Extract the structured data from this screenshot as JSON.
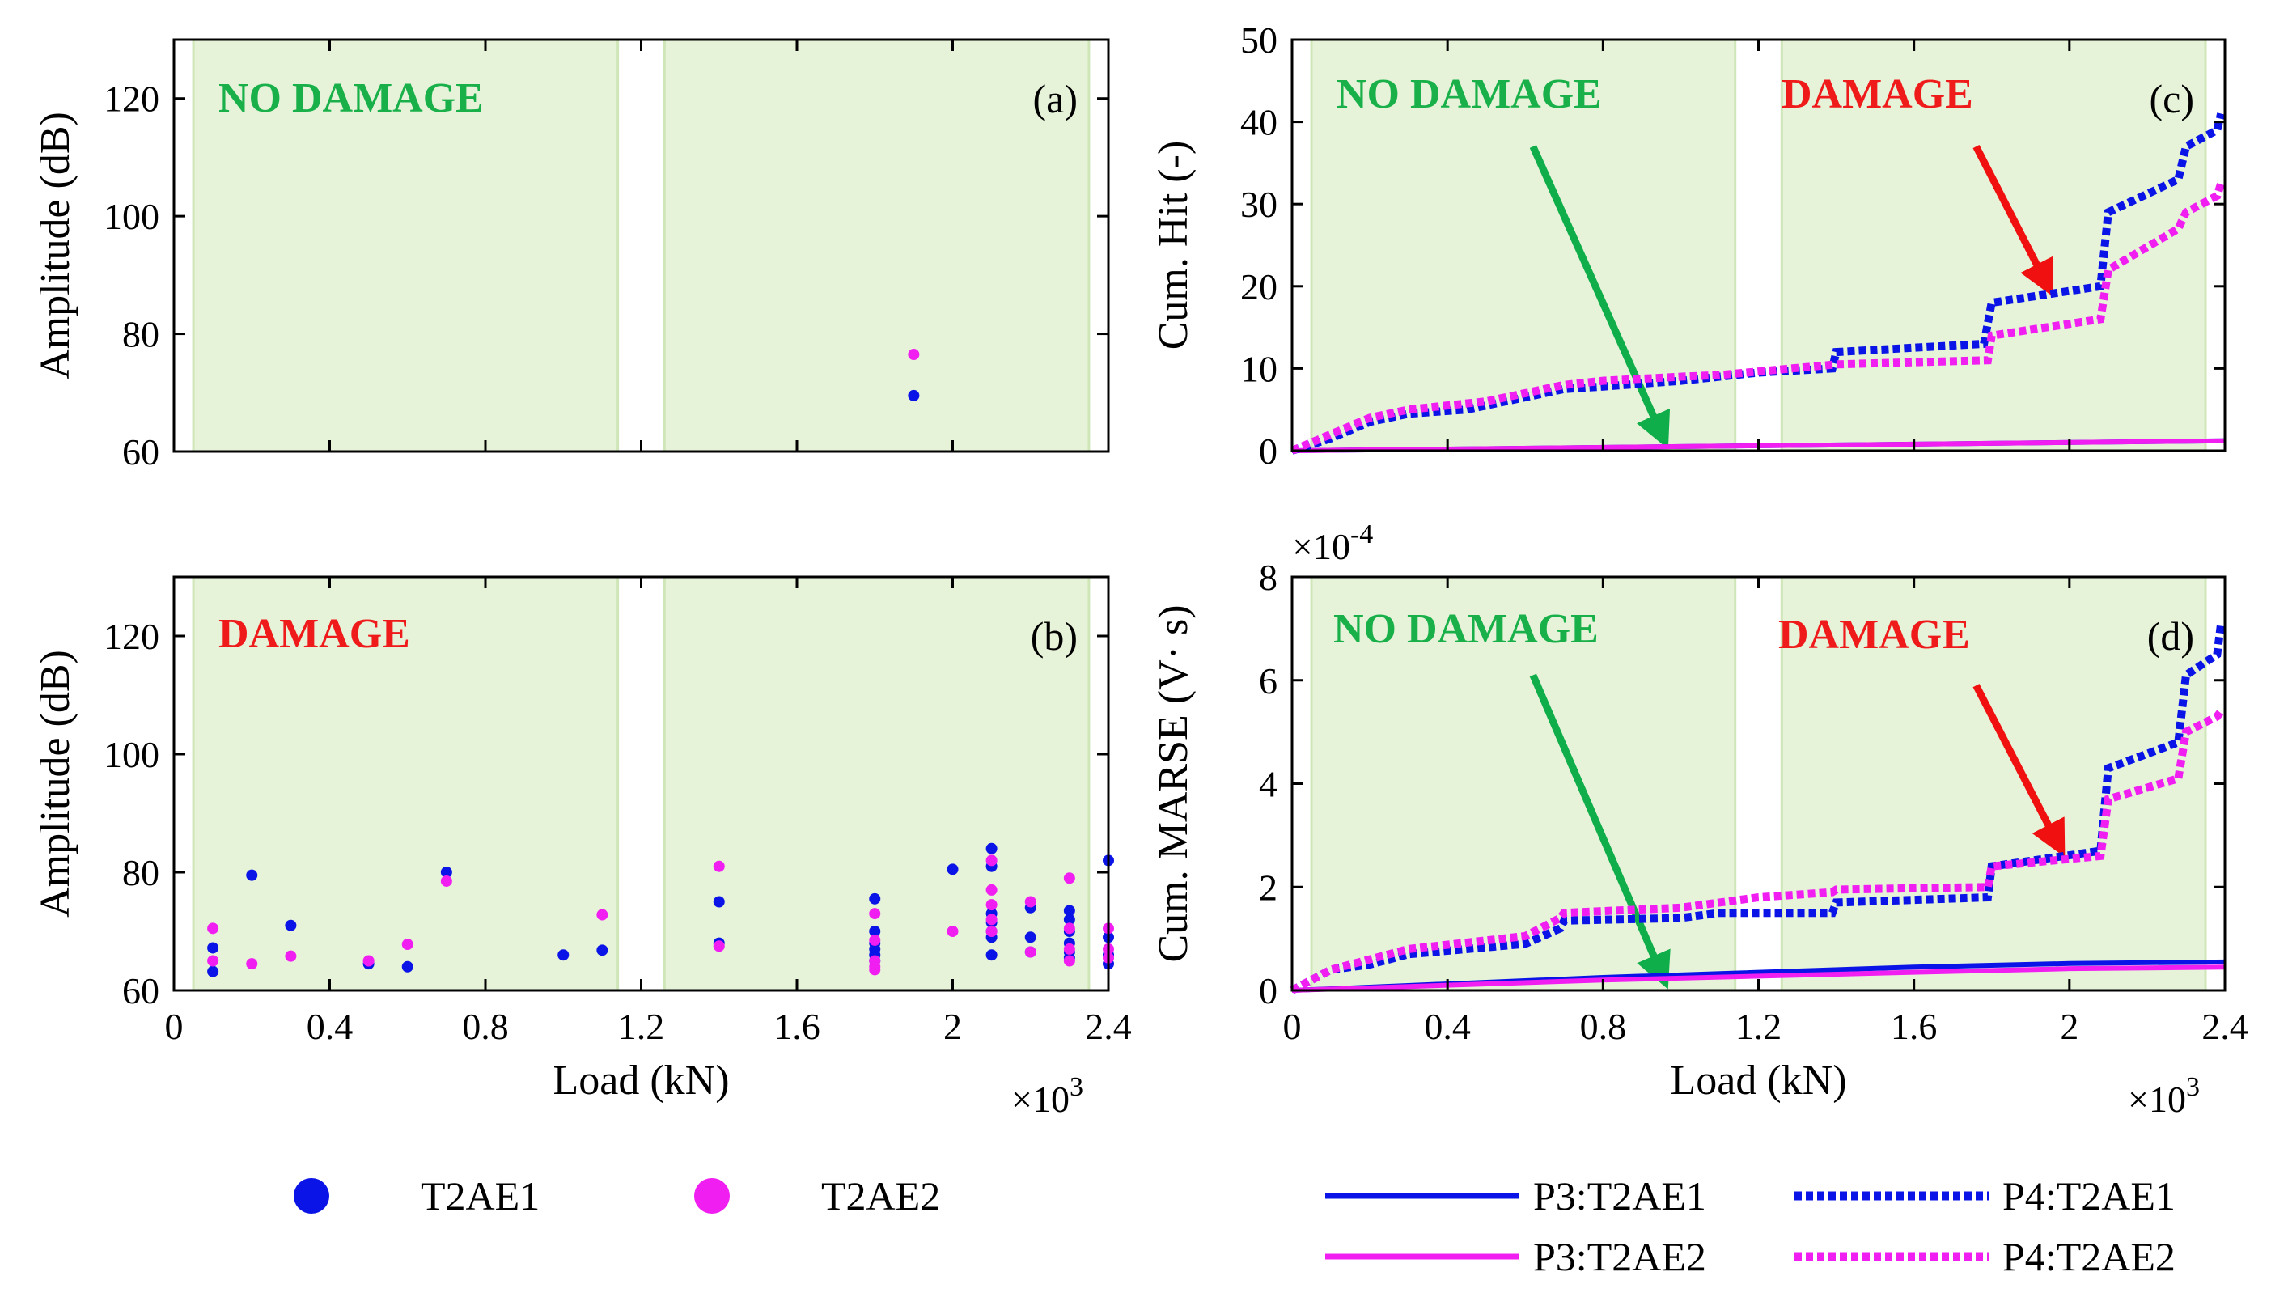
{
  "colors": {
    "blue": "#0a14e6",
    "magenta": "#f01ef0",
    "green_text": "#19b04a",
    "red_text": "#ef1b1b",
    "shade": "#e6f3d9",
    "shade_edge": "#cfe6b8",
    "green_arrow": "#0fae4a",
    "red_arrow": "#f01010"
  },
  "chart_data": [
    {
      "id": "a",
      "type": "scatter",
      "panel_label": "(a)",
      "zone_labels": [
        {
          "text": "NO DAMAGE",
          "color": "green"
        }
      ],
      "ylabel": "Amplitude (dB)",
      "xlabel": "",
      "xlim": [
        0,
        2400
      ],
      "ylim": [
        60,
        130
      ],
      "xticks": [
        0,
        400,
        800,
        1200,
        1600,
        2000,
        2400
      ],
      "yticks": [
        60,
        80,
        100,
        120
      ],
      "ytick_labels": [
        "60",
        "80",
        "100",
        "120"
      ],
      "shaded_regions": [
        [
          50,
          1140
        ],
        [
          1260,
          2350
        ]
      ],
      "series": [
        {
          "name": "T2AE1",
          "color": "blue",
          "points": [
            [
              1900,
              69.5
            ]
          ]
        },
        {
          "name": "T2AE2",
          "color": "magenta",
          "points": [
            [
              1900,
              76.5
            ]
          ]
        }
      ]
    },
    {
      "id": "b",
      "type": "scatter",
      "panel_label": "(b)",
      "zone_labels": [
        {
          "text": "DAMAGE",
          "color": "red"
        }
      ],
      "ylabel": "Amplitude (dB)",
      "xlabel": "Load (kN)",
      "x_multiplier": "×10",
      "x_multiplier_exp": "3",
      "xlim": [
        0,
        2400
      ],
      "ylim": [
        60,
        130
      ],
      "xticks": [
        0,
        400,
        800,
        1200,
        1600,
        2000,
        2400
      ],
      "xtick_labels": [
        "0",
        "0.4",
        "0.8",
        "1.2",
        "1.6",
        "2",
        "2.4"
      ],
      "yticks": [
        60,
        80,
        100,
        120
      ],
      "ytick_labels": [
        "60",
        "80",
        "100",
        "120"
      ],
      "shaded_regions": [
        [
          50,
          1140
        ],
        [
          1260,
          2350
        ]
      ],
      "series": [
        {
          "name": "T2AE1",
          "color": "blue",
          "points": [
            [
              100,
              67.2
            ],
            [
              100,
              63.2
            ],
            [
              200,
              79.5
            ],
            [
              300,
              71
            ],
            [
              500,
              64.5
            ],
            [
              600,
              64
            ],
            [
              700,
              80
            ],
            [
              1000,
              66
            ],
            [
              1100,
              66.8
            ],
            [
              1400,
              75
            ],
            [
              1400,
              68
            ],
            [
              1800,
              75.5
            ],
            [
              1800,
              70
            ],
            [
              1800,
              68
            ],
            [
              1800,
              67
            ],
            [
              1800,
              66
            ],
            [
              1800,
              65
            ],
            [
              2000,
              80.5
            ],
            [
              2100,
              84
            ],
            [
              2100,
              81
            ],
            [
              2100,
              73
            ],
            [
              2100,
              71.5
            ],
            [
              2100,
              70
            ],
            [
              2100,
              69
            ],
            [
              2100,
              66
            ],
            [
              2200,
              74
            ],
            [
              2200,
              69
            ],
            [
              2200,
              66.5
            ],
            [
              2300,
              73.5
            ],
            [
              2300,
              72
            ],
            [
              2300,
              70
            ],
            [
              2300,
              68
            ],
            [
              2300,
              66.5
            ],
            [
              2300,
              65.5
            ],
            [
              2400,
              82
            ],
            [
              2400,
              69
            ],
            [
              2400,
              66
            ],
            [
              2400,
              64.5
            ]
          ]
        },
        {
          "name": "T2AE2",
          "color": "magenta",
          "points": [
            [
              100,
              70.5
            ],
            [
              100,
              65
            ],
            [
              200,
              64.5
            ],
            [
              300,
              65.8
            ],
            [
              500,
              65
            ],
            [
              600,
              67.8
            ],
            [
              700,
              78.5
            ],
            [
              1100,
              72.8
            ],
            [
              1400,
              81
            ],
            [
              1400,
              67.5
            ],
            [
              1800,
              73
            ],
            [
              1800,
              68.5
            ],
            [
              1800,
              65
            ],
            [
              1800,
              64
            ],
            [
              1800,
              63.5
            ],
            [
              2000,
              70
            ],
            [
              2100,
              82
            ],
            [
              2100,
              77
            ],
            [
              2100,
              74.5
            ],
            [
              2100,
              72
            ],
            [
              2100,
              70
            ],
            [
              2200,
              75
            ],
            [
              2200,
              66.5
            ],
            [
              2300,
              79
            ],
            [
              2300,
              70.5
            ],
            [
              2300,
              67
            ],
            [
              2300,
              65
            ],
            [
              2400,
              70.5
            ],
            [
              2400,
              67
            ],
            [
              2400,
              65.5
            ]
          ]
        }
      ],
      "legend": {
        "entries": [
          "T2AE1",
          "T2AE2"
        ],
        "placement": "below"
      }
    },
    {
      "id": "c",
      "type": "line",
      "panel_label": "(c)",
      "zone_labels": [
        {
          "text": "NO DAMAGE",
          "color": "green"
        },
        {
          "text": "DAMAGE",
          "color": "red"
        }
      ],
      "ylabel": "Cum. Hit (-)",
      "xlabel": "",
      "xlim": [
        0,
        2400
      ],
      "ylim": [
        0,
        50
      ],
      "xticks": [
        0,
        400,
        800,
        1200,
        1600,
        2000,
        2400
      ],
      "yticks": [
        0,
        10,
        20,
        30,
        40,
        50
      ],
      "ytick_labels": [
        "0",
        "10",
        "20",
        "30",
        "40",
        "50"
      ],
      "shaded_regions": [
        [
          50,
          1140
        ],
        [
          1260,
          2350
        ]
      ],
      "arrows": [
        {
          "color": "green",
          "from": [
            620,
            37
          ],
          "to": [
            960,
            1
          ]
        },
        {
          "color": "red",
          "from": [
            1760,
            37
          ],
          "to": [
            1950,
            19.5
          ]
        }
      ],
      "series": [
        {
          "name": "P3:T2AE1",
          "color": "blue",
          "style": "solid",
          "points": [
            [
              0,
              0
            ],
            [
              2400,
              1.2
            ]
          ]
        },
        {
          "name": "P3:T2AE2",
          "color": "magenta",
          "style": "solid",
          "points": [
            [
              0,
              0
            ],
            [
              2400,
              1.2
            ]
          ]
        },
        {
          "name": "P4:T2AE1",
          "color": "blue",
          "style": "dotted",
          "points": [
            [
              0,
              0
            ],
            [
              100,
              1.5
            ],
            [
              200,
              3.5
            ],
            [
              300,
              4.5
            ],
            [
              450,
              5
            ],
            [
              600,
              6.5
            ],
            [
              700,
              7.5
            ],
            [
              800,
              7.8
            ],
            [
              1000,
              8.5
            ],
            [
              1100,
              9
            ],
            [
              1200,
              9.5
            ],
            [
              1390,
              10
            ],
            [
              1400,
              12
            ],
            [
              1780,
              13
            ],
            [
              1800,
              18
            ],
            [
              2080,
              20
            ],
            [
              2100,
              29
            ],
            [
              2280,
              33
            ],
            [
              2300,
              37
            ],
            [
              2380,
              39
            ],
            [
              2390,
              41
            ]
          ]
        },
        {
          "name": "P4:T2AE2",
          "color": "magenta",
          "style": "dotted",
          "points": [
            [
              0,
              0
            ],
            [
              100,
              2
            ],
            [
              200,
              4
            ],
            [
              300,
              5
            ],
            [
              500,
              6
            ],
            [
              700,
              8
            ],
            [
              800,
              8.5
            ],
            [
              1000,
              9
            ],
            [
              1100,
              9.2
            ],
            [
              1400,
              10.5
            ],
            [
              1790,
              11
            ],
            [
              1800,
              14
            ],
            [
              2080,
              16
            ],
            [
              2100,
              22
            ],
            [
              2280,
              27
            ],
            [
              2300,
              29
            ],
            [
              2380,
              31
            ],
            [
              2390,
              32.5
            ]
          ]
        }
      ]
    },
    {
      "id": "d",
      "type": "line",
      "panel_label": "(d)",
      "zone_labels": [
        {
          "text": "NO DAMAGE",
          "color": "green"
        },
        {
          "text": "DAMAGE",
          "color": "red"
        }
      ],
      "ylabel": "Cum. MARSE (V· s)",
      "y_multiplier": "×10",
      "y_multiplier_exp": "-4",
      "xlabel": "Load (kN)",
      "x_multiplier": "×10",
      "x_multiplier_exp": "3",
      "xlim": [
        0,
        2400
      ],
      "ylim": [
        0,
        8
      ],
      "xticks": [
        0,
        400,
        800,
        1200,
        1600,
        2000,
        2400
      ],
      "xtick_labels": [
        "0",
        "0.4",
        "0.8",
        "1.2",
        "1.6",
        "2",
        "2.4"
      ],
      "yticks": [
        0,
        2,
        4,
        6,
        8
      ],
      "ytick_labels": [
        "0",
        "2",
        "4",
        "6",
        "8"
      ],
      "shaded_regions": [
        [
          50,
          1140
        ],
        [
          1260,
          2350
        ]
      ],
      "arrows": [
        {
          "color": "green",
          "from": [
            620,
            6.1
          ],
          "to": [
            960,
            0.15
          ]
        },
        {
          "color": "red",
          "from": [
            1760,
            5.9
          ],
          "to": [
            1980,
            2.7
          ]
        }
      ],
      "series": [
        {
          "name": "P3:T2AE1",
          "color": "blue",
          "style": "solid",
          "points": [
            [
              0,
              0
            ],
            [
              800,
              0.25
            ],
            [
              1600,
              0.45
            ],
            [
              2000,
              0.52
            ],
            [
              2400,
              0.55
            ]
          ]
        },
        {
          "name": "P3:T2AE2",
          "color": "magenta",
          "style": "solid",
          "points": [
            [
              0,
              0
            ],
            [
              800,
              0.2
            ],
            [
              1600,
              0.35
            ],
            [
              2000,
              0.42
            ],
            [
              2400,
              0.45
            ]
          ]
        },
        {
          "name": "P4:T2AE1",
          "color": "blue",
          "style": "dotted",
          "points": [
            [
              0,
              0
            ],
            [
              100,
              0.4
            ],
            [
              200,
              0.5
            ],
            [
              300,
              0.7
            ],
            [
              600,
              0.9
            ],
            [
              690,
              1.2
            ],
            [
              700,
              1.35
            ],
            [
              1000,
              1.4
            ],
            [
              1100,
              1.5
            ],
            [
              1390,
              1.5
            ],
            [
              1400,
              1.7
            ],
            [
              1790,
              1.8
            ],
            [
              1800,
              2.4
            ],
            [
              2080,
              2.7
            ],
            [
              2100,
              4.3
            ],
            [
              2280,
              4.8
            ],
            [
              2300,
              6.1
            ],
            [
              2380,
              6.5
            ],
            [
              2390,
              7.1
            ]
          ]
        },
        {
          "name": "P4:T2AE2",
          "color": "magenta",
          "style": "dotted",
          "points": [
            [
              0,
              0
            ],
            [
              100,
              0.4
            ],
            [
              200,
              0.6
            ],
            [
              300,
              0.8
            ],
            [
              600,
              1.05
            ],
            [
              690,
              1.4
            ],
            [
              700,
              1.5
            ],
            [
              1000,
              1.6
            ],
            [
              1200,
              1.8
            ],
            [
              1390,
              1.9
            ],
            [
              1400,
              1.95
            ],
            [
              1790,
              2.0
            ],
            [
              1800,
              2.4
            ],
            [
              2080,
              2.6
            ],
            [
              2100,
              3.7
            ],
            [
              2280,
              4.1
            ],
            [
              2300,
              5.0
            ],
            [
              2380,
              5.3
            ],
            [
              2390,
              5.4
            ]
          ]
        }
      ],
      "legend": {
        "entries": [
          "P3:T2AE1",
          "P4:T2AE1",
          "P3:T2AE2",
          "P4:T2AE2"
        ],
        "placement": "below"
      }
    }
  ],
  "legend_left": [
    {
      "label": "T2AE1",
      "color": "blue"
    },
    {
      "label": "T2AE2",
      "color": "magenta"
    }
  ],
  "legend_right": [
    {
      "label": "P3:T2AE1",
      "color": "blue",
      "style": "solid"
    },
    {
      "label": "P4:T2AE1",
      "color": "blue",
      "style": "dotted"
    },
    {
      "label": "P3:T2AE2",
      "color": "magenta",
      "style": "solid"
    },
    {
      "label": "P4:T2AE2",
      "color": "magenta",
      "style": "dotted"
    }
  ]
}
